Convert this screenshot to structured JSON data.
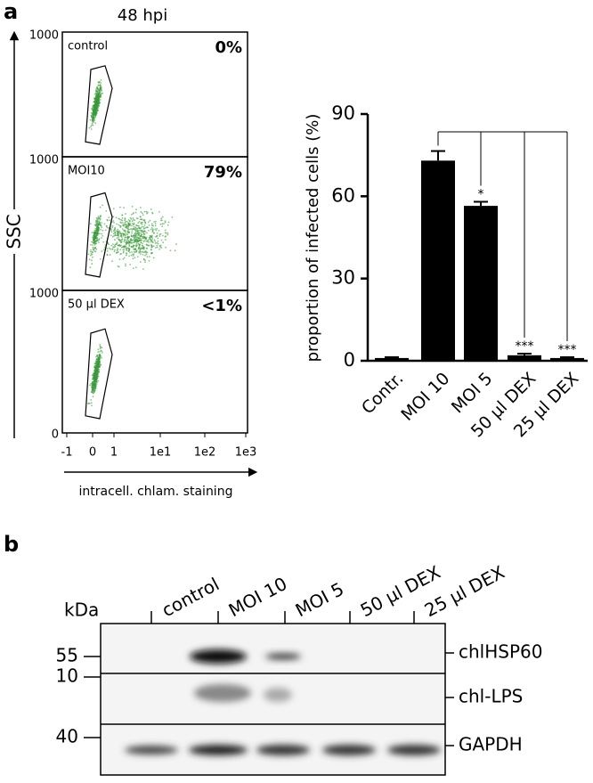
{
  "panel_labels": [
    "a",
    "b"
  ],
  "flow": {
    "title": "48 hpi",
    "ylabel": "SSC",
    "xlabel": "intracell. chlam. staining",
    "xticks": [
      "-1",
      "0",
      "1",
      "1e1",
      "1e2",
      "1e3"
    ],
    "yzero": "0",
    "panels": [
      {
        "label": "control",
        "percent": "0%",
        "ytick": "1000"
      },
      {
        "label": "MOI10",
        "percent": "79%",
        "ytick": "1000"
      },
      {
        "label": "50 µl DEX",
        "percent": "<1%",
        "ytick": "1000"
      }
    ]
  },
  "chart_data": {
    "type": "bar",
    "ylabel": "proportion of infected cells (%)",
    "categories": [
      "Contr.",
      "MOI 10",
      "MOI 5",
      "50 µl DEX",
      "25 µl DEX"
    ],
    "values": [
      1,
      73,
      56.5,
      2,
      1
    ],
    "errors": [
      0.3,
      3.5,
      1.5,
      0.6,
      0.3
    ],
    "significance": [
      null,
      null,
      "*",
      "***",
      "***"
    ],
    "color": "#000000",
    "ylim": [
      0,
      90
    ],
    "yticks": [
      0,
      30,
      60,
      90
    ]
  },
  "blot": {
    "unit": "kDa",
    "lanes": [
      "control",
      "MOI 10",
      "MOI 5",
      "50 µl DEX",
      "25 µl DEX"
    ],
    "markers": [
      "55",
      "10",
      "40"
    ],
    "bands": [
      "chlHSP60",
      "chl-LPS",
      "GAPDH"
    ]
  }
}
